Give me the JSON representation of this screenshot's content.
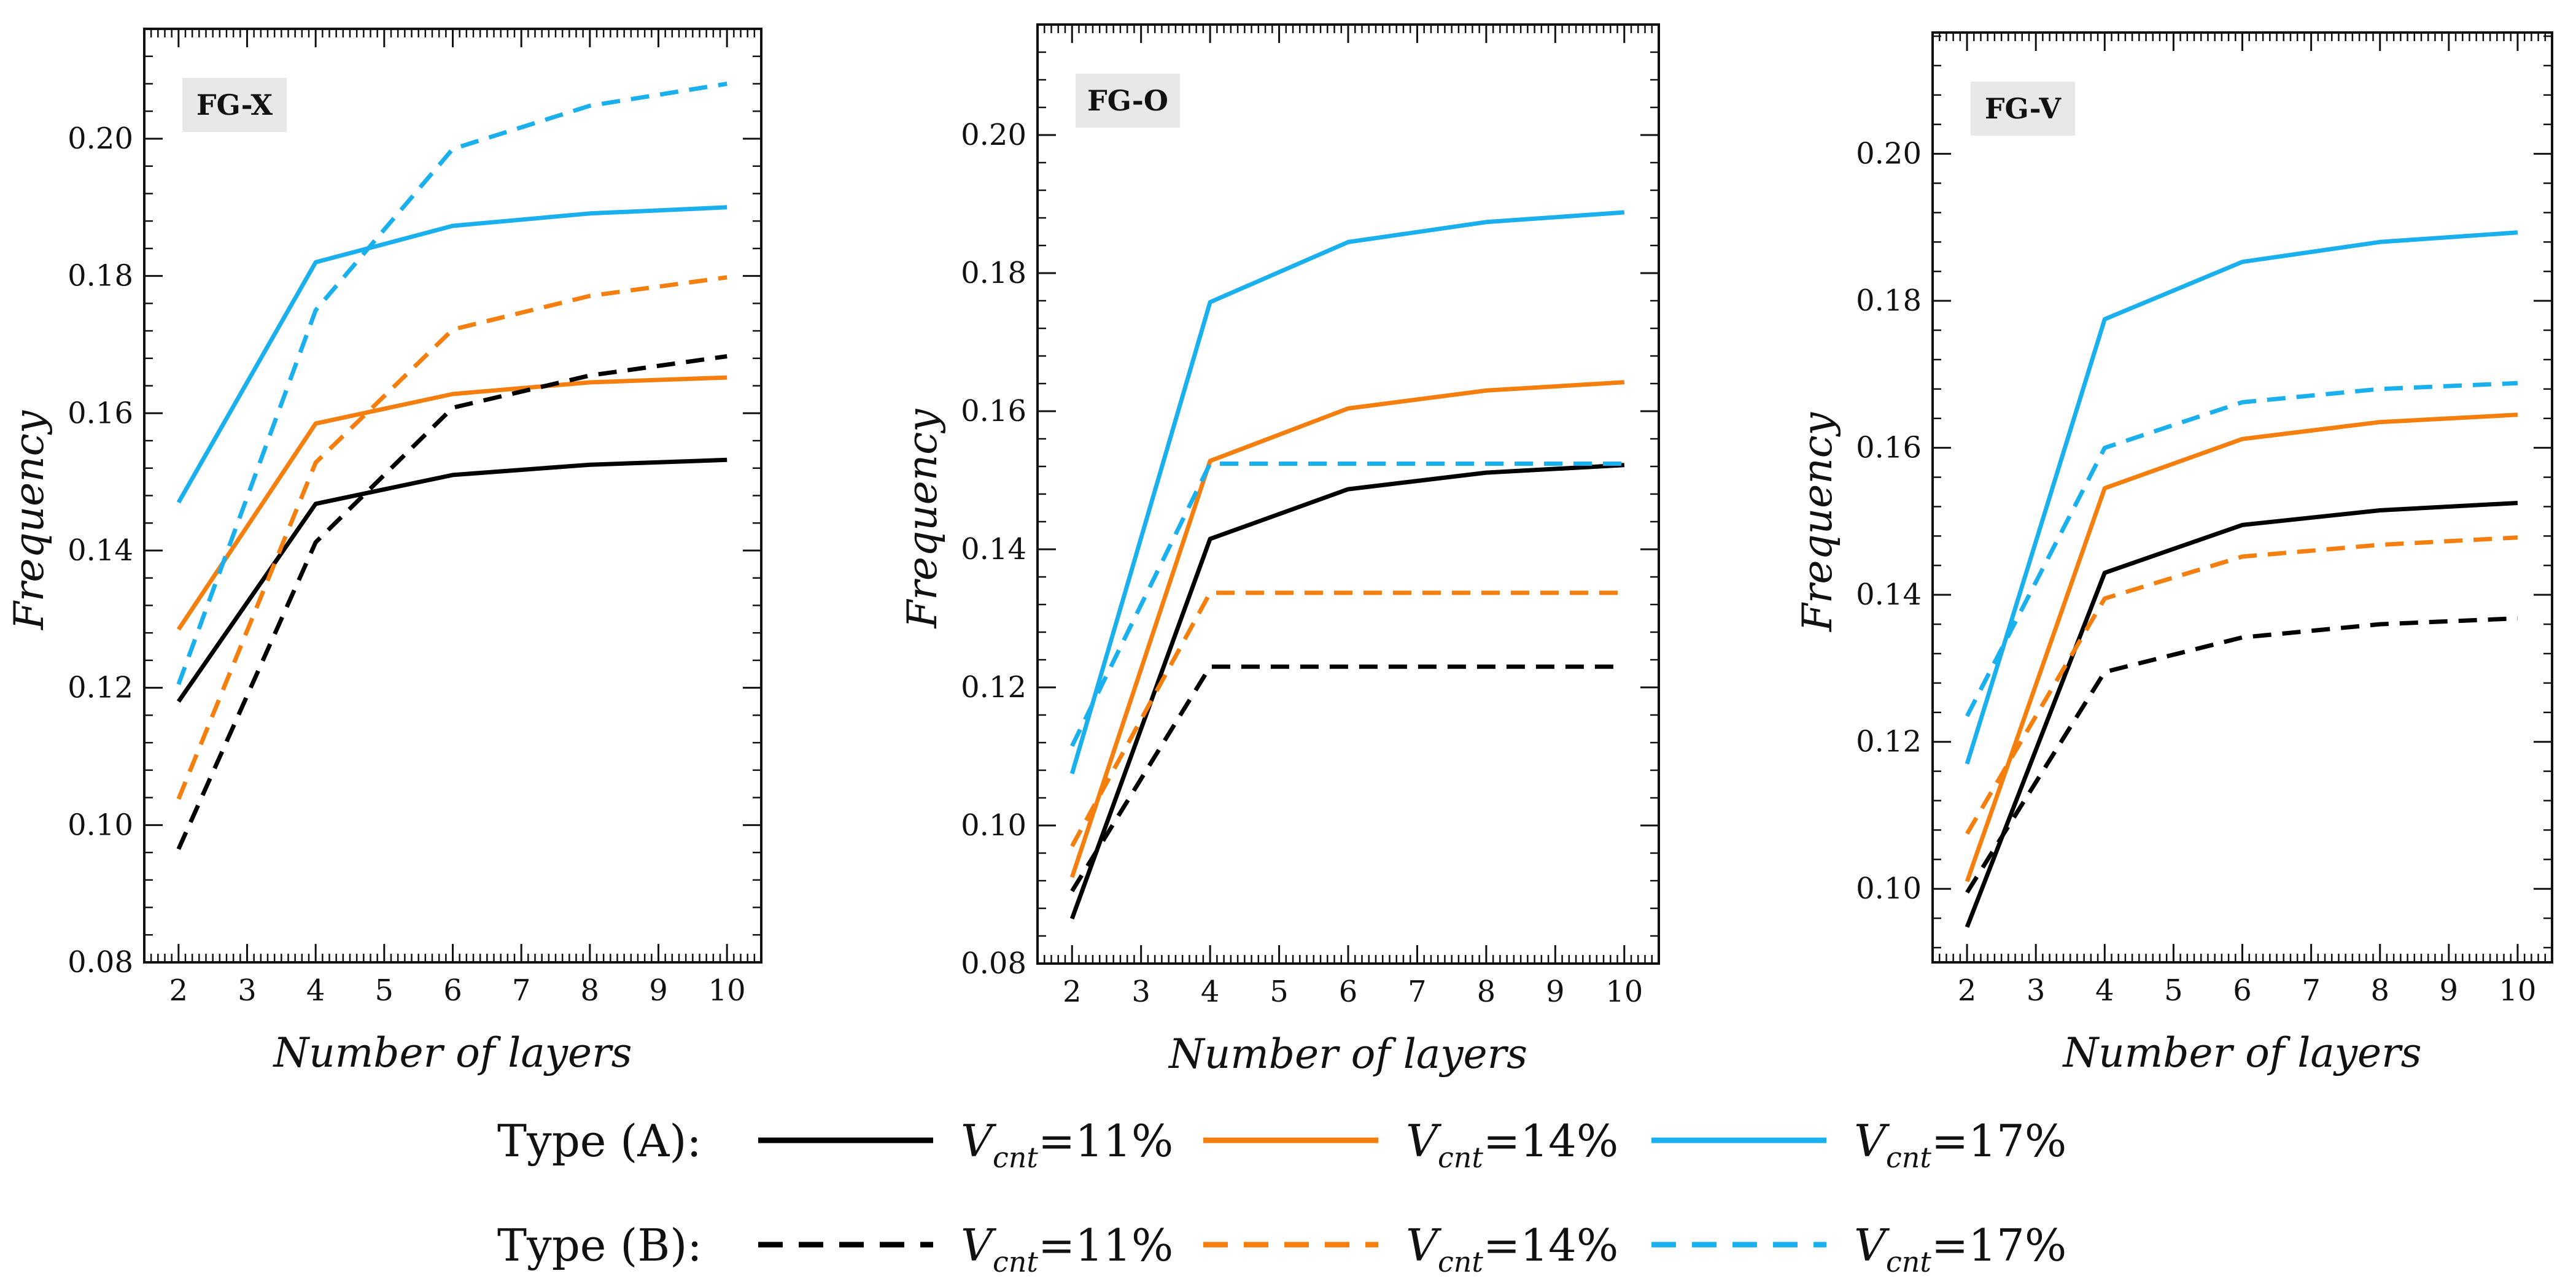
{
  "chart_data": [
    {
      "type": "line",
      "panel_label": "FG-X",
      "xlabel": "Number of layers",
      "ylabel": "Frequency",
      "x": [
        2,
        4,
        6,
        8,
        10
      ],
      "xlim": [
        1.5,
        10.5
      ],
      "ylim": [
        0.08,
        0.216
      ],
      "xticks": [
        "2",
        "3",
        "4",
        "5",
        "6",
        "7",
        "8",
        "9",
        "10"
      ],
      "yticks": [
        "0.08",
        "0.10",
        "0.12",
        "0.14",
        "0.16",
        "0.18",
        "0.20"
      ],
      "series": [
        {
          "name": "Type (A) V_cnt=11%",
          "color": "#000000",
          "dash": "solid",
          "values": [
            0.118,
            0.1468,
            0.151,
            0.1525,
            0.1532
          ]
        },
        {
          "name": "Type (A) V_cnt=14%",
          "color": "#f47f0f",
          "dash": "solid",
          "values": [
            0.1285,
            0.1585,
            0.1628,
            0.1645,
            0.1652
          ]
        },
        {
          "name": "Type (A) V_cnt=17%",
          "color": "#1ab0ee",
          "dash": "solid",
          "values": [
            0.147,
            0.182,
            0.1873,
            0.1891,
            0.19
          ]
        },
        {
          "name": "Type (B) V_cnt=11%",
          "color": "#000000",
          "dash": "dashed",
          "values": [
            0.0965,
            0.1412,
            0.1608,
            0.1655,
            0.1683
          ]
        },
        {
          "name": "Type (B) V_cnt=14%",
          "color": "#f47f0f",
          "dash": "dashed",
          "values": [
            0.1038,
            0.1528,
            0.1722,
            0.1771,
            0.1798
          ]
        },
        {
          "name": "Type (B) V_cnt=17%",
          "color": "#1ab0ee",
          "dash": "dashed",
          "values": [
            0.1205,
            0.175,
            0.1985,
            0.2048,
            0.208
          ]
        }
      ]
    },
    {
      "type": "line",
      "panel_label": "FG-O",
      "xlabel": "Number of layers",
      "ylabel": "Frequency",
      "x": [
        2,
        4,
        6,
        8,
        10
      ],
      "xlim": [
        1.5,
        10.5
      ],
      "ylim": [
        0.08,
        0.216
      ],
      "xticks": [
        "2",
        "3",
        "4",
        "5",
        "6",
        "7",
        "8",
        "9",
        "10"
      ],
      "yticks": [
        "0.08",
        "0.10",
        "0.12",
        "0.14",
        "0.16",
        "0.18",
        "0.20"
      ],
      "series": [
        {
          "name": "Type (A) V_cnt=11%",
          "color": "#000000",
          "dash": "solid",
          "values": [
            0.0865,
            0.1415,
            0.1487,
            0.1511,
            0.1522
          ]
        },
        {
          "name": "Type (A) V_cnt=14%",
          "color": "#f47f0f",
          "dash": "solid",
          "values": [
            0.0925,
            0.1528,
            0.1604,
            0.163,
            0.1642
          ]
        },
        {
          "name": "Type (A) V_cnt=17%",
          "color": "#1ab0ee",
          "dash": "solid",
          "values": [
            0.1075,
            0.1758,
            0.1845,
            0.1874,
            0.1888
          ]
        },
        {
          "name": "Type (B) V_cnt=11%",
          "color": "#000000",
          "dash": "dashed",
          "values": [
            0.0905,
            0.123,
            0.123,
            0.123,
            0.123
          ]
        },
        {
          "name": "Type (B) V_cnt=14%",
          "color": "#f47f0f",
          "dash": "dashed",
          "values": [
            0.097,
            0.1337,
            0.1337,
            0.1337,
            0.1337
          ]
        },
        {
          "name": "Type (B) V_cnt=17%",
          "color": "#1ab0ee",
          "dash": "dashed",
          "values": [
            0.1115,
            0.1524,
            0.1524,
            0.1524,
            0.1524
          ]
        }
      ]
    },
    {
      "type": "line",
      "panel_label": "FG-V",
      "xlabel": "Number of layers",
      "ylabel": "Frequency",
      "x": [
        2,
        4,
        6,
        8,
        10
      ],
      "xlim": [
        1.5,
        10.5
      ],
      "ylim": [
        0.09,
        0.2165
      ],
      "xticks": [
        "2",
        "3",
        "4",
        "5",
        "6",
        "7",
        "8",
        "9",
        "10"
      ],
      "yticks": [
        "0.10",
        "0.12",
        "0.14",
        "0.16",
        "0.18",
        "0.20"
      ],
      "series": [
        {
          "name": "Type (A) V_cnt=11%",
          "color": "#000000",
          "dash": "solid",
          "values": [
            0.0948,
            0.143,
            0.1495,
            0.1515,
            0.1525
          ]
        },
        {
          "name": "Type (A) V_cnt=14%",
          "color": "#f47f0f",
          "dash": "solid",
          "values": [
            0.101,
            0.1545,
            0.1612,
            0.1635,
            0.1645
          ]
        },
        {
          "name": "Type (A) V_cnt=17%",
          "color": "#1ab0ee",
          "dash": "solid",
          "values": [
            0.117,
            0.1775,
            0.1853,
            0.188,
            0.1893
          ]
        },
        {
          "name": "Type (B) V_cnt=11%",
          "color": "#000000",
          "dash": "dashed",
          "values": [
            0.0995,
            0.1295,
            0.1342,
            0.136,
            0.1368
          ]
        },
        {
          "name": "Type (B) V_cnt=14%",
          "color": "#f47f0f",
          "dash": "dashed",
          "values": [
            0.1075,
            0.1395,
            0.1452,
            0.1468,
            0.1478
          ]
        },
        {
          "name": "Type (B) V_cnt=17%",
          "color": "#1ab0ee",
          "dash": "dashed",
          "values": [
            0.1235,
            0.16,
            0.1662,
            0.168,
            0.1688
          ]
        }
      ]
    }
  ],
  "legend": {
    "rows": [
      {
        "type_label": "Type (A):",
        "dash": "solid",
        "entries": [
          {
            "color": "#000000",
            "symbol": "V",
            "subscript": "cnt",
            "value": "=11%"
          },
          {
            "color": "#f47f0f",
            "symbol": "V",
            "subscript": "cnt",
            "value": "=14%"
          },
          {
            "color": "#1ab0ee",
            "symbol": "V",
            "subscript": "cnt",
            "value": "=17%"
          }
        ]
      },
      {
        "type_label": "Type (B):",
        "dash": "dashed",
        "entries": [
          {
            "color": "#000000",
            "symbol": "V",
            "subscript": "cnt",
            "value": "=11%"
          },
          {
            "color": "#f47f0f",
            "symbol": "V",
            "subscript": "cnt",
            "value": "=14%"
          },
          {
            "color": "#1ab0ee",
            "symbol": "V",
            "subscript": "cnt",
            "value": "=17%"
          }
        ]
      }
    ]
  }
}
